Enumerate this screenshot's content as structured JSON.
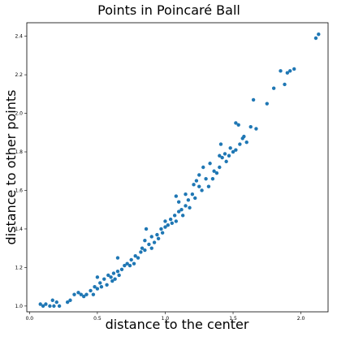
{
  "chart_data": {
    "type": "scatter",
    "title": "Points in Poincaré Ball",
    "xlabel": "distance to the center",
    "ylabel": "distance to other points",
    "xlim": [
      -0.02,
      2.2
    ],
    "ylim": [
      0.97,
      2.47
    ],
    "xticks": [
      "0.0",
      "0.5",
      "1.0",
      "1.5",
      "2.0"
    ],
    "yticks": [
      "1.0",
      "1.2",
      "1.4",
      "1.6",
      "1.8",
      "2.0",
      "2.2",
      "2.4"
    ],
    "grid": false,
    "marker_color": "#1f77b4",
    "points": [
      {
        "x": 0.08,
        "y": 1.01
      },
      {
        "x": 0.1,
        "y": 1.0
      },
      {
        "x": 0.12,
        "y": 1.01
      },
      {
        "x": 0.15,
        "y": 1.0
      },
      {
        "x": 0.17,
        "y": 1.03
      },
      {
        "x": 0.18,
        "y": 1.0
      },
      {
        "x": 0.2,
        "y": 1.02
      },
      {
        "x": 0.22,
        "y": 1.0
      },
      {
        "x": 0.28,
        "y": 1.02
      },
      {
        "x": 0.3,
        "y": 1.03
      },
      {
        "x": 0.33,
        "y": 1.06
      },
      {
        "x": 0.36,
        "y": 1.07
      },
      {
        "x": 0.38,
        "y": 1.06
      },
      {
        "x": 0.4,
        "y": 1.05
      },
      {
        "x": 0.42,
        "y": 1.06
      },
      {
        "x": 0.45,
        "y": 1.08
      },
      {
        "x": 0.47,
        "y": 1.06
      },
      {
        "x": 0.48,
        "y": 1.1
      },
      {
        "x": 0.5,
        "y": 1.09
      },
      {
        "x": 0.5,
        "y": 1.15
      },
      {
        "x": 0.52,
        "y": 1.12
      },
      {
        "x": 0.53,
        "y": 1.1
      },
      {
        "x": 0.55,
        "y": 1.14
      },
      {
        "x": 0.57,
        "y": 1.11
      },
      {
        "x": 0.58,
        "y": 1.16
      },
      {
        "x": 0.6,
        "y": 1.15
      },
      {
        "x": 0.61,
        "y": 1.13
      },
      {
        "x": 0.62,
        "y": 1.17
      },
      {
        "x": 0.63,
        "y": 1.14
      },
      {
        "x": 0.65,
        "y": 1.18
      },
      {
        "x": 0.65,
        "y": 1.25
      },
      {
        "x": 0.66,
        "y": 1.16
      },
      {
        "x": 0.68,
        "y": 1.19
      },
      {
        "x": 0.7,
        "y": 1.21
      },
      {
        "x": 0.72,
        "y": 1.22
      },
      {
        "x": 0.74,
        "y": 1.21
      },
      {
        "x": 0.75,
        "y": 1.24
      },
      {
        "x": 0.77,
        "y": 1.22
      },
      {
        "x": 0.78,
        "y": 1.26
      },
      {
        "x": 0.8,
        "y": 1.25
      },
      {
        "x": 0.82,
        "y": 1.28
      },
      {
        "x": 0.83,
        "y": 1.3
      },
      {
        "x": 0.85,
        "y": 1.29
      },
      {
        "x": 0.85,
        "y": 1.34
      },
      {
        "x": 0.86,
        "y": 1.4
      },
      {
        "x": 0.88,
        "y": 1.32
      },
      {
        "x": 0.9,
        "y": 1.3
      },
      {
        "x": 0.9,
        "y": 1.36
      },
      {
        "x": 0.92,
        "y": 1.33
      },
      {
        "x": 0.94,
        "y": 1.37
      },
      {
        "x": 0.95,
        "y": 1.35
      },
      {
        "x": 0.97,
        "y": 1.4
      },
      {
        "x": 0.98,
        "y": 1.38
      },
      {
        "x": 1.0,
        "y": 1.41
      },
      {
        "x": 1.0,
        "y": 1.44
      },
      {
        "x": 1.02,
        "y": 1.42
      },
      {
        "x": 1.04,
        "y": 1.45
      },
      {
        "x": 1.05,
        "y": 1.43
      },
      {
        "x": 1.07,
        "y": 1.47
      },
      {
        "x": 1.08,
        "y": 1.44
      },
      {
        "x": 1.08,
        "y": 1.57
      },
      {
        "x": 1.1,
        "y": 1.49
      },
      {
        "x": 1.1,
        "y": 1.54
      },
      {
        "x": 1.12,
        "y": 1.5
      },
      {
        "x": 1.13,
        "y": 1.47
      },
      {
        "x": 1.15,
        "y": 1.52
      },
      {
        "x": 1.15,
        "y": 1.58
      },
      {
        "x": 1.17,
        "y": 1.55
      },
      {
        "x": 1.18,
        "y": 1.51
      },
      {
        "x": 1.2,
        "y": 1.58
      },
      {
        "x": 1.21,
        "y": 1.63
      },
      {
        "x": 1.22,
        "y": 1.56
      },
      {
        "x": 1.23,
        "y": 1.65
      },
      {
        "x": 1.25,
        "y": 1.62
      },
      {
        "x": 1.25,
        "y": 1.68
      },
      {
        "x": 1.27,
        "y": 1.6
      },
      {
        "x": 1.28,
        "y": 1.72
      },
      {
        "x": 1.3,
        "y": 1.66
      },
      {
        "x": 1.32,
        "y": 1.62
      },
      {
        "x": 1.33,
        "y": 1.74
      },
      {
        "x": 1.35,
        "y": 1.66
      },
      {
        "x": 1.36,
        "y": 1.7
      },
      {
        "x": 1.38,
        "y": 1.69
      },
      {
        "x": 1.4,
        "y": 1.72
      },
      {
        "x": 1.4,
        "y": 1.78
      },
      {
        "x": 1.41,
        "y": 1.84
      },
      {
        "x": 1.42,
        "y": 1.77
      },
      {
        "x": 1.44,
        "y": 1.79
      },
      {
        "x": 1.45,
        "y": 1.75
      },
      {
        "x": 1.47,
        "y": 1.78
      },
      {
        "x": 1.48,
        "y": 1.82
      },
      {
        "x": 1.5,
        "y": 1.8
      },
      {
        "x": 1.52,
        "y": 1.81
      },
      {
        "x": 1.52,
        "y": 1.95
      },
      {
        "x": 1.54,
        "y": 1.94
      },
      {
        "x": 1.55,
        "y": 1.84
      },
      {
        "x": 1.57,
        "y": 1.87
      },
      {
        "x": 1.58,
        "y": 1.88
      },
      {
        "x": 1.6,
        "y": 1.85
      },
      {
        "x": 1.63,
        "y": 1.93
      },
      {
        "x": 1.65,
        "y": 2.07
      },
      {
        "x": 1.67,
        "y": 1.92
      },
      {
        "x": 1.75,
        "y": 2.05
      },
      {
        "x": 1.8,
        "y": 2.13
      },
      {
        "x": 1.85,
        "y": 2.22
      },
      {
        "x": 1.88,
        "y": 2.15
      },
      {
        "x": 1.9,
        "y": 2.21
      },
      {
        "x": 1.92,
        "y": 2.22
      },
      {
        "x": 1.95,
        "y": 2.23
      },
      {
        "x": 2.11,
        "y": 2.39
      },
      {
        "x": 2.13,
        "y": 2.41
      }
    ]
  }
}
